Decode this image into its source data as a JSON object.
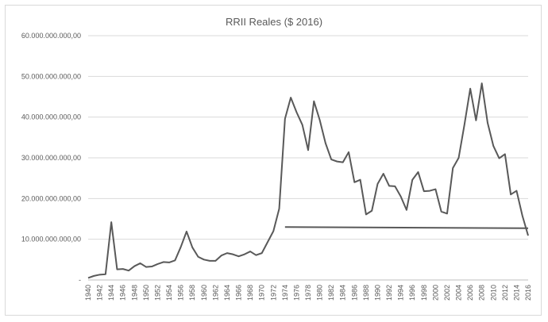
{
  "chart_data": {
    "type": "line",
    "title": "RRII Reales ($ 2016)",
    "ylim": [
      0,
      60000000000
    ],
    "y_ticks": [
      {
        "value": 0,
        "label": "-"
      },
      {
        "value": 10000000000,
        "label": "10.000.000.000,00"
      },
      {
        "value": 20000000000,
        "label": "20.000.000.000,00"
      },
      {
        "value": 30000000000,
        "label": "30.000.000.000,00"
      },
      {
        "value": 40000000000,
        "label": "40.000.000.000,00"
      },
      {
        "value": 50000000000,
        "label": "50.000.000.000,00"
      },
      {
        "value": 60000000000,
        "label": "60.000.000.000,00"
      }
    ],
    "x_ticks": [
      1940,
      1942,
      1944,
      1946,
      1948,
      1950,
      1952,
      1954,
      1956,
      1958,
      1960,
      1962,
      1964,
      1966,
      1968,
      1970,
      1972,
      1974,
      1976,
      1978,
      1980,
      1982,
      1984,
      1986,
      1988,
      1990,
      1992,
      1994,
      1996,
      1998,
      2000,
      2002,
      2004,
      2006,
      2008,
      2010,
      2012,
      2014,
      2016
    ],
    "xlim": [
      1940,
      2016
    ],
    "grid": true,
    "line_color": "#595959",
    "series": [
      {
        "x": [
          1940,
          1941,
          1942,
          1943,
          1944,
          1945,
          1946,
          1947,
          1948,
          1949,
          1950,
          1951,
          1952,
          1953,
          1954,
          1955,
          1956,
          1957,
          1958,
          1959,
          1960,
          1961,
          1962,
          1963,
          1964,
          1965,
          1966,
          1967,
          1968,
          1969,
          1970,
          1971,
          1972,
          1973,
          1974,
          1975,
          1976,
          1977,
          1978,
          1979,
          1980,
          1981,
          1982,
          1983,
          1984,
          1985,
          1986,
          1987,
          1988,
          1989,
          1990,
          1991,
          1992,
          1993,
          1994,
          1995,
          1996,
          1997,
          1998,
          1999,
          2000,
          2001,
          2002,
          2003,
          2004,
          2005,
          2006,
          2007,
          2008,
          2009,
          2010,
          2011,
          2012,
          2013,
          2014,
          2015,
          2016
        ],
        "values": [
          500000000,
          1000000000,
          1300000000,
          1400000000,
          14200000000,
          2600000000,
          2700000000,
          2300000000,
          3400000000,
          4100000000,
          3200000000,
          3300000000,
          3900000000,
          4400000000,
          4300000000,
          4800000000,
          8100000000,
          11900000000,
          8000000000,
          5700000000,
          5000000000,
          4700000000,
          4700000000,
          6000000000,
          6600000000,
          6300000000,
          5800000000,
          6300000000,
          7000000000,
          6100000000,
          6600000000,
          9300000000,
          12000000000,
          17500000000,
          39600000000,
          44800000000,
          41200000000,
          38100000000,
          31900000000,
          43900000000,
          39300000000,
          33600000000,
          29600000000,
          29100000000,
          28900000000,
          31400000000,
          24000000000,
          24600000000,
          16100000000,
          17000000000,
          23600000000,
          26100000000,
          23100000000,
          23000000000,
          20500000000,
          17200000000,
          24600000000,
          26500000000,
          21800000000,
          21900000000,
          22300000000,
          16800000000,
          16300000000,
          27500000000,
          30000000000,
          38200000000,
          47000000000,
          39200000000,
          48300000000,
          38600000000,
          32900000000,
          29900000000,
          30900000000,
          21000000000,
          21900000000,
          15800000000,
          10900000000
        ]
      },
      {
        "x": [
          1974,
          2016
        ],
        "values": [
          13000000000,
          12700000000
        ]
      }
    ]
  }
}
